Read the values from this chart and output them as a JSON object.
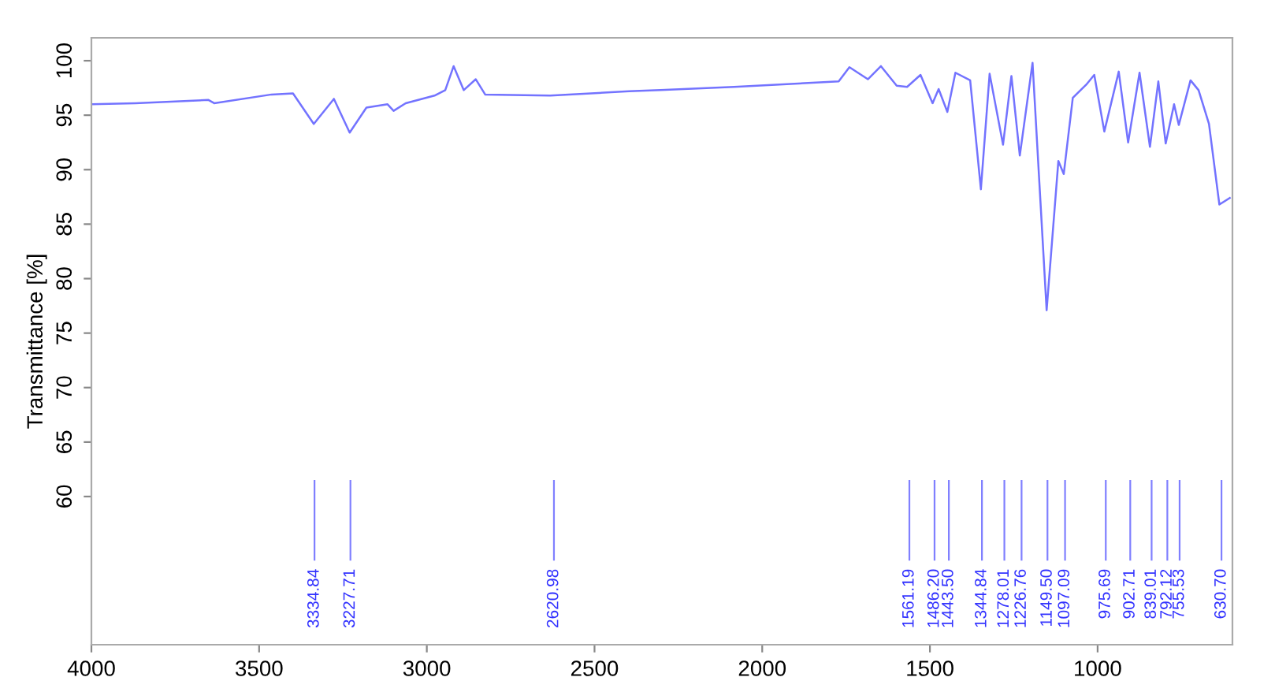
{
  "chart_data": {
    "type": "line",
    "ylabel": "Transmittance [%]",
    "xlim": [
      4000,
      598
    ],
    "xticks": [
      4000,
      3500,
      3000,
      2500,
      2000,
      1500,
      1000
    ],
    "ylim": [
      46.4,
      102.1
    ],
    "yticks": [
      60,
      65,
      70,
      75,
      80,
      85,
      90,
      95,
      100
    ],
    "grid": false,
    "legend": false,
    "series": [
      {
        "color": "#7373ff",
        "x": [
          4000,
          3869,
          3651,
          3634,
          3463,
          3399,
          3337,
          3277,
          3230,
          3180,
          3117,
          3099,
          3063,
          2977,
          2945,
          2920,
          2890,
          2854,
          2826,
          2632,
          2397,
          2303,
          2084,
          1772,
          1740,
          1685,
          1646,
          1599,
          1568,
          1528,
          1492,
          1474,
          1448,
          1424,
          1380,
          1348,
          1322,
          1282,
          1257,
          1232,
          1194,
          1152,
          1117,
          1101,
          1074,
          1034,
          1010,
          980,
          937,
          909,
          875,
          844,
          819,
          797,
          772,
          758,
          723,
          699,
          668,
          637,
          606
        ],
        "values": [
          96.0,
          96.1,
          96.4,
          96.1,
          96.9,
          97.0,
          94.2,
          96.5,
          93.4,
          95.7,
          96.0,
          95.4,
          96.1,
          96.8,
          97.3,
          99.5,
          97.3,
          98.3,
          96.9,
          96.8,
          97.2,
          97.3,
          97.6,
          98.1,
          99.4,
          98.3,
          99.5,
          97.7,
          97.6,
          98.7,
          96.1,
          97.4,
          95.3,
          98.9,
          98.2,
          88.2,
          98.8,
          92.3,
          98.6,
          91.3,
          99.8,
          77.1,
          90.8,
          89.6,
          96.6,
          97.8,
          98.7,
          93.5,
          99.0,
          92.5,
          98.9,
          92.1,
          98.1,
          92.4,
          96.0,
          94.1,
          98.2,
          97.3,
          94.2,
          86.8,
          87.4
        ]
      }
    ],
    "annotations": [
      {
        "text": "3334.84",
        "x": 3334.84
      },
      {
        "text": "3227.71",
        "x": 3227.71
      },
      {
        "text": "2620.98",
        "x": 2620.98
      },
      {
        "text": "1561.19",
        "x": 1561.19
      },
      {
        "text": "1486.20",
        "x": 1486.2
      },
      {
        "text": "1443.50",
        "x": 1443.5
      },
      {
        "text": "1344.84",
        "x": 1344.84
      },
      {
        "text": "1278.01",
        "x": 1278.01
      },
      {
        "text": "1226.76",
        "x": 1226.76
      },
      {
        "text": "1149.50",
        "x": 1149.5
      },
      {
        "text": "1097.09",
        "x": 1097.09
      },
      {
        "text": "975.69",
        "x": 975.69
      },
      {
        "text": "902.71",
        "x": 902.71
      },
      {
        "text": "839.01",
        "x": 839.01
      },
      {
        "text": "792.12",
        "x": 792.12
      },
      {
        "text": "755.53",
        "x": 755.53
      },
      {
        "text": "630.70",
        "x": 630.7
      }
    ]
  }
}
